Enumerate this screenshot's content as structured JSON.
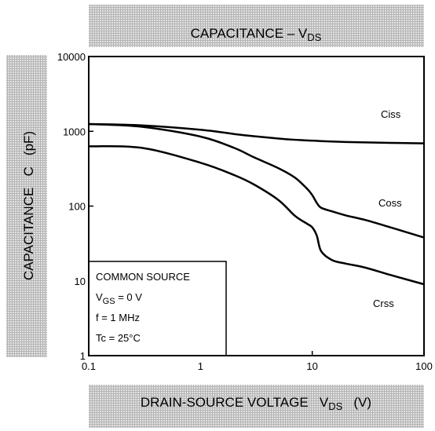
{
  "chart_data": {
    "type": "line",
    "title": [
      "CAPACITANCE – V",
      "DS"
    ],
    "xlabel": [
      "DRAIN-SOURCE VOLTAGE   V",
      "DS",
      "   (V)"
    ],
    "ylabel": "CAPACITANCE   C   (pF)",
    "log_x": true,
    "log_y": true,
    "grid": false,
    "x": [
      0.1,
      0.3,
      1,
      2,
      3,
      5,
      7,
      9,
      10,
      11,
      12,
      15,
      20,
      30,
      50,
      100
    ],
    "series": [
      {
        "name": "Ciss",
        "color": "#000000",
        "values": [
          1250,
          1200,
          1050,
          920,
          860,
          800,
          770,
          755,
          750,
          745,
          740,
          730,
          720,
          710,
          700,
          690
        ]
      },
      {
        "name": "Coss",
        "color": "#000000",
        "values": [
          1250,
          1150,
          850,
          600,
          450,
          320,
          240,
          170,
          140,
          110,
          95,
          85,
          75,
          65,
          52,
          38
        ]
      },
      {
        "name": "Crss",
        "color": "#000000",
        "values": [
          630,
          600,
          380,
          260,
          195,
          120,
          74,
          58,
          52,
          40,
          25,
          19,
          17,
          15,
          12,
          9
        ]
      }
    ],
    "xlim": [
      0.1,
      100
    ],
    "ylim": [
      1,
      10000
    ],
    "xticks": [
      0.1,
      1,
      10,
      100
    ],
    "yticks": [
      1,
      10,
      100,
      1000,
      10000
    ],
    "annotation": [
      [
        "COMMON SOURCE"
      ],
      [
        "V",
        "GS",
        " = 0 V"
      ],
      [
        "f = 1 MHz"
      ],
      [
        "Tc = 25°C"
      ]
    ]
  }
}
